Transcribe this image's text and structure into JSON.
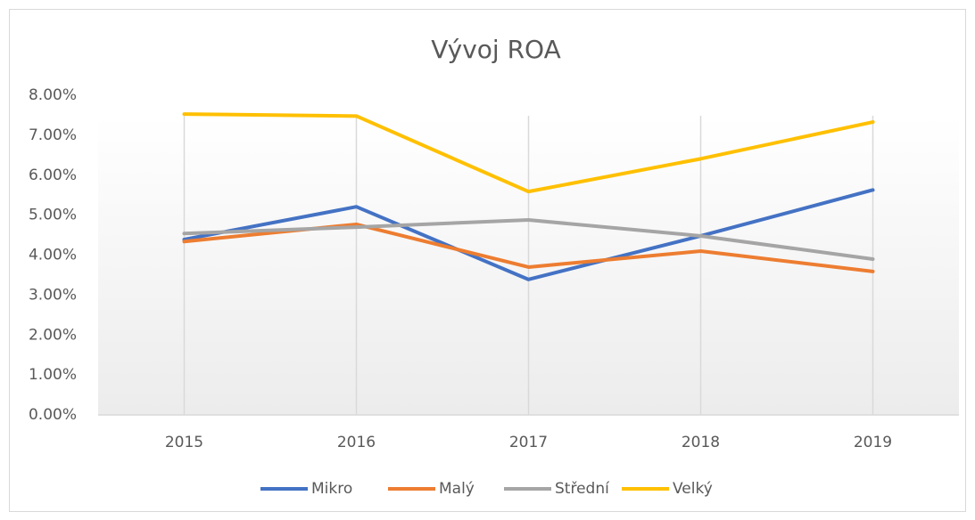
{
  "chart_data": {
    "type": "line",
    "title": "Vývoj ROA",
    "categories": [
      "2015",
      "2016",
      "2017",
      "2018",
      "2019"
    ],
    "series": [
      {
        "name": "Mikro",
        "color": "#4472c4",
        "values": [
          4.39,
          5.21,
          3.39,
          4.48,
          5.63
        ]
      },
      {
        "name": "Malý",
        "color": "#ed7d31",
        "values": [
          4.34,
          4.77,
          3.7,
          4.1,
          3.59
        ]
      },
      {
        "name": "Střední",
        "color": "#a5a5a5",
        "values": [
          4.54,
          4.7,
          4.88,
          4.48,
          3.9
        ]
      },
      {
        "name": "Velký",
        "color": "#ffc000",
        "values": [
          7.53,
          7.48,
          5.59,
          6.41,
          7.33
        ]
      }
    ],
    "ylim": [
      0,
      8
    ],
    "yticks": [
      {
        "value": 0,
        "label": "0.00%"
      },
      {
        "value": 1,
        "label": "1.00%"
      },
      {
        "value": 2,
        "label": "2.00%"
      },
      {
        "value": 3,
        "label": "3.00%"
      },
      {
        "value": 4,
        "label": "4.00%"
      },
      {
        "value": 5,
        "label": "5.00%"
      },
      {
        "value": 6,
        "label": "6.00%"
      },
      {
        "value": 7,
        "label": "7.00%"
      },
      {
        "value": 8,
        "label": "8.00%"
      }
    ],
    "grid": "vertical",
    "legend": "bottom"
  }
}
